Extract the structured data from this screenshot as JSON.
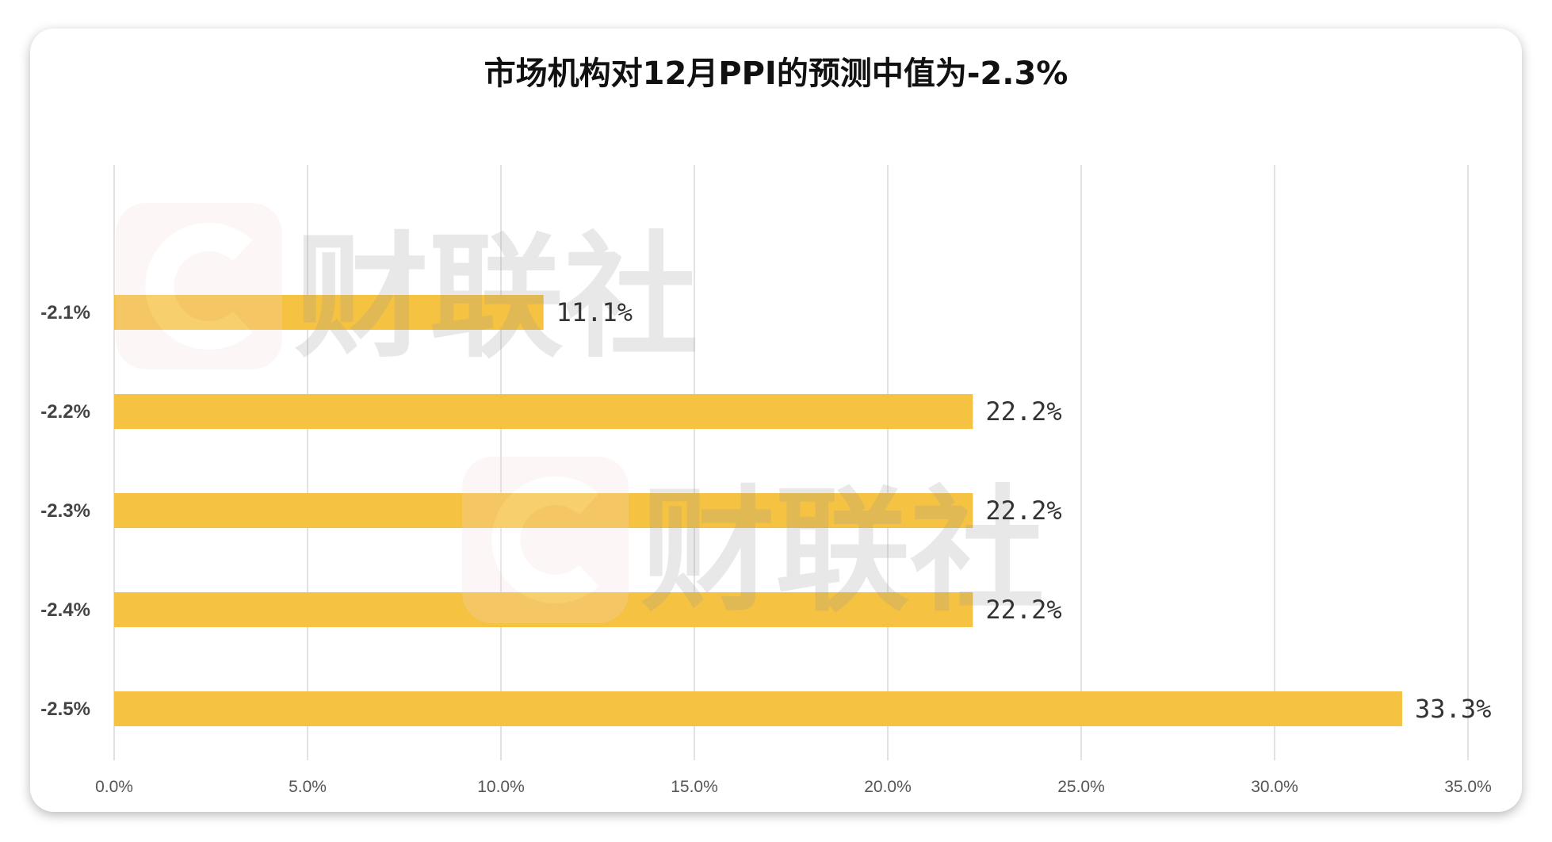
{
  "chart_data": {
    "type": "bar",
    "orientation": "horizontal",
    "title": "市场机构对12月PPI的预测中值为-2.3%",
    "categories": [
      "-2.1%",
      "-2.2%",
      "-2.3%",
      "-2.4%",
      "-2.5%"
    ],
    "values": [
      11.1,
      22.2,
      22.2,
      22.2,
      33.3
    ],
    "data_labels": [
      "11.1%",
      "22.2%",
      "22.2%",
      "22.2%",
      "33.3%"
    ],
    "xlim": [
      0,
      35
    ],
    "x_ticks": [
      0,
      5,
      10,
      15,
      20,
      25,
      30,
      35
    ],
    "x_tick_labels": [
      "0.0%",
      "5.0%",
      "10.0%",
      "15.0%",
      "20.0%",
      "25.0%",
      "30.0%",
      "35.0%"
    ],
    "grid": true,
    "bar_color": "#F5C242",
    "watermark": "财联社"
  }
}
